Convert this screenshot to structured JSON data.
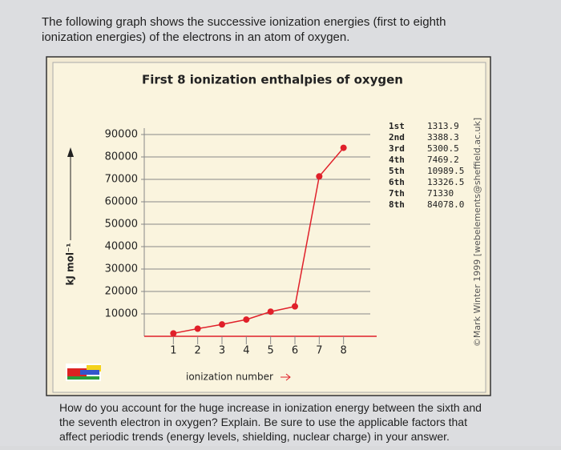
{
  "intro": "The following graph shows the successive ionization energies (first to eighth ionization energies) of the electrons in an atom of oxygen.",
  "question": "How do you account for the huge increase in ionization energy between the sixth and the seventh electron in oxygen? Explain. Be sure to use the applicable factors that affect periodic trends (energy levels, shielding, nuclear charge) in your answer.",
  "chart_data": {
    "type": "line",
    "title": "First 8 ionization enthalpies of oxygen",
    "x_label": "ionization number",
    "y_label": "kJ mol⁻¹",
    "credit": "©Mark Winter 1999 [webelements@sheffield.ac.uk]",
    "x": [
      1,
      2,
      3,
      4,
      5,
      6,
      7,
      8
    ],
    "ordinals": [
      "1st",
      "2nd",
      "3rd",
      "4th",
      "5th",
      "6th",
      "7th",
      "8th"
    ],
    "series": [
      {
        "name": "oxygen",
        "color": "#e0202a",
        "values": [
          1313.9,
          3388.3,
          5300.5,
          7469.2,
          10989.5,
          13326.5,
          71330,
          84078.0
        ],
        "value_labels": [
          "1313.9",
          "3388.3",
          "5300.5",
          "7469.2",
          "10989.5",
          "13326.5",
          "71330",
          "84078.0"
        ]
      }
    ],
    "xlim": [
      0,
      9
    ],
    "xticks": [
      1,
      2,
      3,
      4,
      5,
      6,
      7,
      8
    ],
    "ylim": [
      0,
      90000
    ],
    "yticks": [
      10000,
      20000,
      30000,
      40000,
      50000,
      60000,
      70000,
      80000,
      90000
    ],
    "grid": true
  }
}
